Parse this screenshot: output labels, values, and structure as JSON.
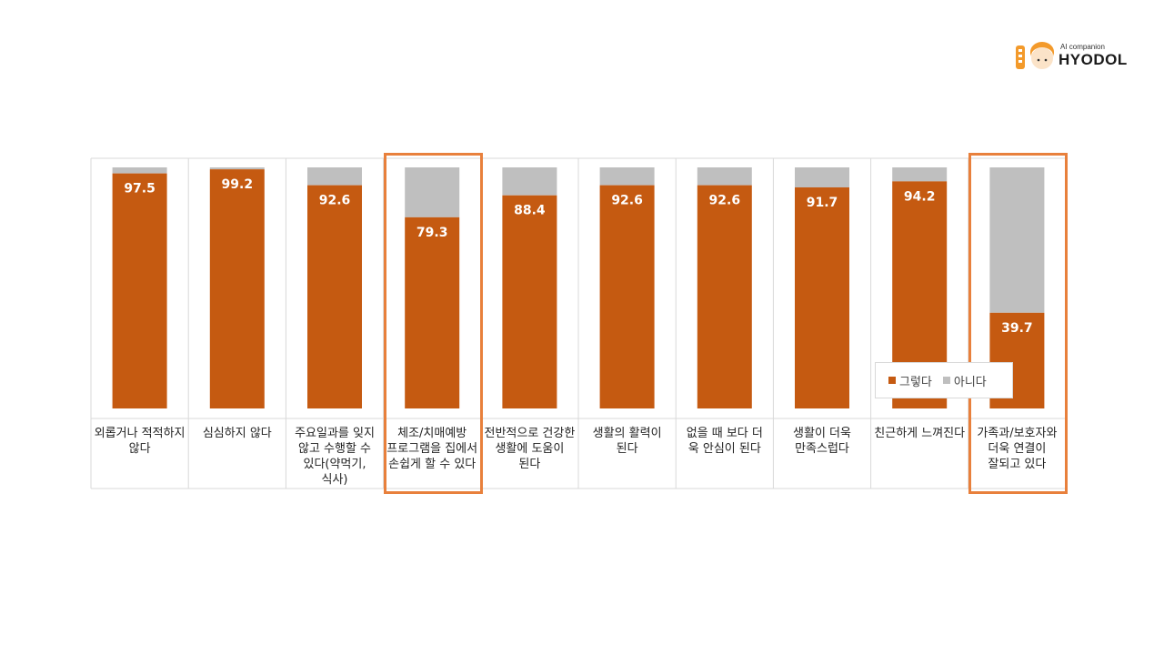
{
  "brand": {
    "sub": "AI companion",
    "name": "HYODOL"
  },
  "colors": {
    "yes": "#c55a11",
    "no": "#bfbfbf",
    "highlight": "#e8803c",
    "grid": "#d9d9d9"
  },
  "chart_data": {
    "type": "bar",
    "stacked": true,
    "percent_total": 100,
    "categories": [
      "외롭거나 적적하지 않다",
      "심심하지 않다",
      "주요일과를 잊지 않고 수행할 수 있다(약먹기, 식사)",
      "체조/치매예방 프로그램을 집에서 손쉽게 할 수 있다",
      "전반적으로 건강한 생활에 도움이 된다",
      "생활의 활력이 된다",
      "없을 때 보다 더 욱 안심이 된다",
      "생활이 더욱 만족스럽다",
      "친근하게 느껴진다",
      "가족과/보호자와 더욱 연결이 잘되고 있다"
    ],
    "series": [
      {
        "name": "그렇다",
        "values": [
          97.5,
          99.2,
          92.6,
          79.3,
          88.4,
          92.6,
          92.6,
          91.7,
          94.2,
          39.7
        ]
      },
      {
        "name": "아니다",
        "values": [
          2.5,
          0.8,
          7.4,
          20.7,
          11.6,
          7.4,
          7.4,
          8.3,
          5.8,
          60.3
        ]
      }
    ],
    "data_labels": [
      "97.5",
      "99.2",
      "92.6",
      "79.3",
      "88.4",
      "92.6",
      "92.6",
      "91.7",
      "94.2",
      "39.7"
    ],
    "highlighted_categories": [
      3,
      9
    ],
    "legend": "bottom-right",
    "ylim": [
      0,
      100
    ]
  }
}
